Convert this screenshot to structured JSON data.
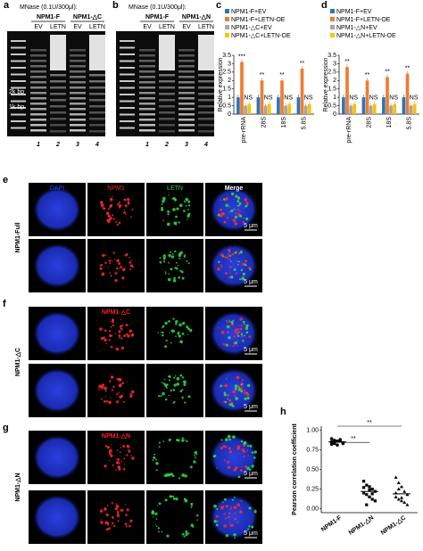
{
  "gels": [
    {
      "label": "a",
      "mnase": "MNase (0.1U/300μl):",
      "groups": [
        "NPM1-F",
        "NPM1-△C"
      ],
      "lanes": [
        "EV",
        "LETN",
        "EV",
        "LETN"
      ],
      "markers": [
        "2k bp",
        "1k bp"
      ],
      "lane_numbers": [
        "1",
        "2",
        "3",
        "4"
      ]
    },
    {
      "label": "b",
      "mnase": "MNase (0.1U/300μl):",
      "groups": [
        "NPM1-F",
        "NPM1-△N"
      ],
      "lanes": [
        "EV",
        "LETN",
        "EV",
        "LETN"
      ],
      "lane_numbers": [
        "1",
        "2",
        "3",
        "4"
      ]
    }
  ],
  "micrographs": [
    {
      "label": "e",
      "row_label": "NPM1-Full",
      "headers": [
        "DAPI",
        "NPM1",
        "LETN",
        "Merge"
      ],
      "scale_bars": [
        "5 μm",
        "5 μm"
      ]
    },
    {
      "label": "f",
      "row_label": "NPM1-△C",
      "header": "NPM1-△C",
      "scale_bars": [
        "5 μm",
        "5 μm"
      ]
    },
    {
      "label": "g",
      "row_label": "NPM1-△N",
      "header": "NPM1-△N",
      "scale_bars": [
        "5 μm",
        "5 μm"
      ]
    }
  ],
  "chart_data": [
    {
      "panel_label": "c",
      "type": "bar",
      "y_label": "Relative expression",
      "categories": [
        "pre-rRNA",
        "28S",
        "18S",
        "5.8S"
      ],
      "series": [
        {
          "name": "NPM1-F+EV",
          "color": "#2e75b6",
          "values": [
            1,
            1,
            1,
            1
          ]
        },
        {
          "name": "NPM1-F+LETN-OE",
          "color": "#ed7d31",
          "values": [
            3.1,
            2.0,
            2.0,
            2.7
          ]
        },
        {
          "name": "NPM1-△C+EV",
          "color": "#a5a5a5",
          "values": [
            0.5,
            0.5,
            0.5,
            0.5
          ]
        },
        {
          "name": "NPM1-△C+LETN-OE",
          "color": "#ffc000",
          "values": [
            0.6,
            0.6,
            0.6,
            0.6
          ]
        }
      ],
      "ylim": [
        0,
        3.5
      ],
      "yticks": [
        0,
        0.5,
        1,
        1.5,
        2,
        2.5,
        3,
        3.5
      ],
      "sig_labels": [
        "***",
        "**",
        "**",
        "**"
      ],
      "ns_labels": [
        "NS",
        "NS",
        "NS",
        "NS"
      ]
    },
    {
      "panel_label": "d",
      "type": "bar",
      "y_label": "Relative expression",
      "categories": [
        "pre-rRNA",
        "28S",
        "18S",
        "5.8S"
      ],
      "series": [
        {
          "name": "NPM1-F+EV",
          "color": "#2e75b6",
          "values": [
            1,
            1,
            1,
            1
          ]
        },
        {
          "name": "NPM1-F+LETN-OE",
          "color": "#ed7d31",
          "values": [
            2.8,
            2.0,
            2.2,
            2.4
          ]
        },
        {
          "name": "NPM1-△N+EV",
          "color": "#a5a5a5",
          "values": [
            0.5,
            0.5,
            0.5,
            0.5
          ]
        },
        {
          "name": "NPM1-△N+LETN-OE",
          "color": "#ffc000",
          "values": [
            0.6,
            0.6,
            0.6,
            0.6
          ]
        }
      ],
      "ylim": [
        0,
        3.5
      ],
      "yticks": [
        0,
        0.5,
        1,
        1.5,
        2,
        2.5,
        3,
        3.5
      ],
      "sig_labels": [
        "**",
        "**",
        "**",
        "**"
      ],
      "ns_labels": [
        "NS",
        "NS",
        "NS",
        "NS"
      ]
    },
    {
      "panel_label": "h",
      "type": "strip",
      "y_label": "Pearson correlation coefficient",
      "categories": [
        "NPM1-F",
        "NPM1-△N",
        "NPM1-△C"
      ],
      "values": [
        [
          0.82,
          0.84,
          0.86,
          0.88,
          0.83,
          0.85,
          0.87,
          0.81,
          0.86,
          0.84,
          0.89,
          0.83
        ],
        [
          0.35,
          0.3,
          0.28,
          0.25,
          0.22,
          0.2,
          0.18,
          0.15,
          0.12,
          0.1,
          0.27,
          0.05,
          0.24,
          0.19
        ],
        [
          0.4,
          0.33,
          0.28,
          0.22,
          0.18,
          0.15,
          0.12,
          0.1,
          0.08,
          0.05,
          0.2,
          0.25,
          0.14
        ]
      ],
      "means": [
        0.85,
        0.22,
        0.19
      ],
      "color": "#000000",
      "ylim": [
        -0.05,
        1.05
      ],
      "yticks": [
        {
          "value": 0,
          "label": "0.00"
        },
        {
          "value": 0.25,
          "label": "0.25"
        },
        {
          "value": 0.5,
          "label": "0.50"
        },
        {
          "value": 0.75,
          "label": "0.75"
        },
        {
          "value": 1,
          "label": "1.00"
        }
      ],
      "brackets": [
        "**",
        "**"
      ]
    }
  ]
}
